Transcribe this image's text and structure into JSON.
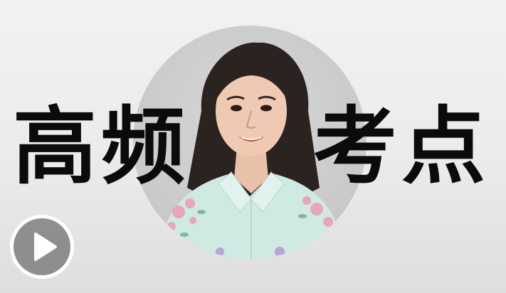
{
  "headline": {
    "left_text": "高频",
    "right_text": "考点"
  },
  "presenter": {
    "icon": "presenter-portrait"
  },
  "play_button": {
    "icon": "play-icon",
    "accent_color": "#ffffff"
  },
  "colors": {
    "background": "#ececec",
    "circle": "#cccccc",
    "text": "#0b0b0b",
    "shirt": "#cfe9e3"
  }
}
